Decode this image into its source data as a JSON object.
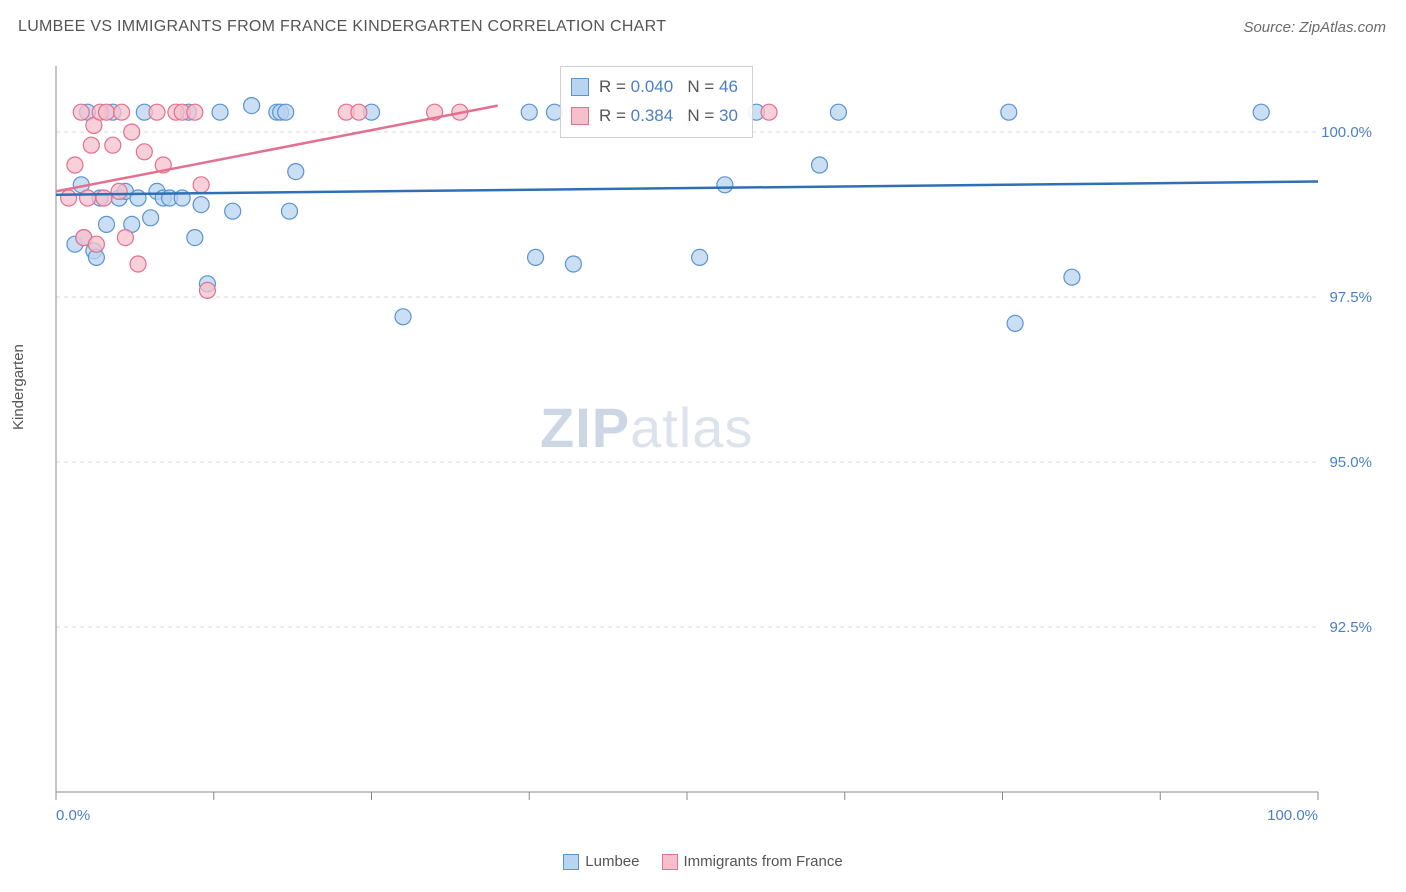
{
  "title": "LUMBEE VS IMMIGRANTS FROM FRANCE KINDERGARTEN CORRELATION CHART",
  "source": "Source: ZipAtlas.com",
  "ylabel": "Kindergarten",
  "watermark": {
    "bold": "ZIP",
    "rest": "atlas"
  },
  "chart": {
    "type": "scatter",
    "xlim": [
      0,
      100
    ],
    "ylim": [
      90,
      101
    ],
    "xtick_positions": [
      0,
      12.5,
      25,
      37.5,
      50,
      62.5,
      75,
      87.5,
      100
    ],
    "xtick_labels": {
      "0": "0.0%",
      "100": "100.0%"
    },
    "ytick_positions": [
      92.5,
      95.0,
      97.5,
      100.0
    ],
    "ytick_labels": [
      "92.5%",
      "95.0%",
      "97.5%",
      "100.0%"
    ],
    "grid_color": "#d8d8d8",
    "axis_color": "#888888",
    "background": "#ffffff",
    "marker_radius": 8,
    "marker_stroke_width": 1.2,
    "line_width": 2.5
  },
  "series": [
    {
      "name": "Lumbee",
      "color_fill": "#b8d4f0",
      "color_stroke": "#5a93d0",
      "line_color": "#2f6fb5",
      "R": "0.040",
      "N": "46",
      "trend": {
        "x1": 0,
        "y1": 99.05,
        "x2": 100,
        "y2": 99.25
      },
      "points": [
        [
          2.0,
          99.2
        ],
        [
          2.5,
          100.3
        ],
        [
          3.0,
          98.2
        ],
        [
          3.5,
          99.0
        ],
        [
          4.0,
          98.6
        ],
        [
          4.5,
          100.3
        ],
        [
          5.0,
          99.0
        ],
        [
          5.5,
          99.1
        ],
        [
          6.0,
          98.6
        ],
        [
          6.5,
          99.0
        ],
        [
          7.0,
          100.3
        ],
        [
          7.5,
          98.7
        ],
        [
          8.0,
          99.1
        ],
        [
          8.5,
          99.0
        ],
        [
          9.0,
          99.0
        ],
        [
          10.0,
          99.0
        ],
        [
          10.5,
          100.3
        ],
        [
          11.0,
          98.4
        ],
        [
          11.5,
          98.9
        ],
        [
          12.0,
          97.7
        ],
        [
          13.0,
          100.3
        ],
        [
          14.0,
          98.8
        ],
        [
          15.5,
          100.4
        ],
        [
          17.5,
          100.3
        ],
        [
          17.8,
          100.3
        ],
        [
          18.2,
          100.3
        ],
        [
          18.5,
          98.8
        ],
        [
          19.0,
          99.4
        ],
        [
          25.0,
          100.3
        ],
        [
          27.5,
          97.2
        ],
        [
          37.5,
          100.3
        ],
        [
          38.0,
          98.1
        ],
        [
          39.5,
          100.3
        ],
        [
          41.0,
          98.0
        ],
        [
          51.0,
          98.1
        ],
        [
          53.0,
          99.2
        ],
        [
          55.5,
          100.3
        ],
        [
          60.5,
          99.5
        ],
        [
          62.0,
          100.3
        ],
        [
          75.5,
          100.3
        ],
        [
          76.0,
          97.1
        ],
        [
          80.5,
          97.8
        ],
        [
          95.5,
          100.3
        ],
        [
          1.5,
          98.3
        ],
        [
          2.2,
          98.4
        ],
        [
          3.2,
          98.1
        ]
      ]
    },
    {
      "name": "Immigrants from France",
      "color_fill": "#f4c0cc",
      "color_stroke": "#e2708e",
      "line_color": "#e2708e",
      "R": "0.384",
      "N": "30",
      "trend": {
        "x1": 0,
        "y1": 99.1,
        "x2": 35,
        "y2": 100.4
      },
      "points": [
        [
          1.0,
          99.0
        ],
        [
          1.5,
          99.5
        ],
        [
          2.0,
          100.3
        ],
        [
          2.2,
          98.4
        ],
        [
          2.5,
          99.0
        ],
        [
          2.8,
          99.8
        ],
        [
          3.0,
          100.1
        ],
        [
          3.2,
          98.3
        ],
        [
          3.5,
          100.3
        ],
        [
          3.8,
          99.0
        ],
        [
          4.0,
          100.3
        ],
        [
          4.5,
          99.8
        ],
        [
          5.0,
          99.1
        ],
        [
          5.2,
          100.3
        ],
        [
          5.5,
          98.4
        ],
        [
          6.0,
          100.0
        ],
        [
          6.5,
          98.0
        ],
        [
          7.0,
          99.7
        ],
        [
          8.0,
          100.3
        ],
        [
          8.5,
          99.5
        ],
        [
          9.5,
          100.3
        ],
        [
          10.0,
          100.3
        ],
        [
          11.0,
          100.3
        ],
        [
          11.5,
          99.2
        ],
        [
          12.0,
          97.6
        ],
        [
          23.0,
          100.3
        ],
        [
          24.0,
          100.3
        ],
        [
          30.0,
          100.3
        ],
        [
          32.0,
          100.3
        ],
        [
          56.5,
          100.3
        ]
      ]
    }
  ],
  "legend_bottom": [
    {
      "label": "Lumbee",
      "fill": "#b8d4f0",
      "stroke": "#5a93d0"
    },
    {
      "label": "Immigrants from France",
      "fill": "#f4c0cc",
      "stroke": "#e2708e"
    }
  ],
  "stats_legend": {
    "rows": [
      {
        "fill": "#b8d4f0",
        "stroke": "#5a93d0",
        "R_label": "R =",
        "R": "0.040",
        "N_label": "N =",
        "N": "46"
      },
      {
        "fill": "#f4c0cc",
        "stroke": "#e2708e",
        "R_label": "R =",
        "R": "0.384",
        "N_label": "N =",
        "N": "30"
      }
    ]
  }
}
